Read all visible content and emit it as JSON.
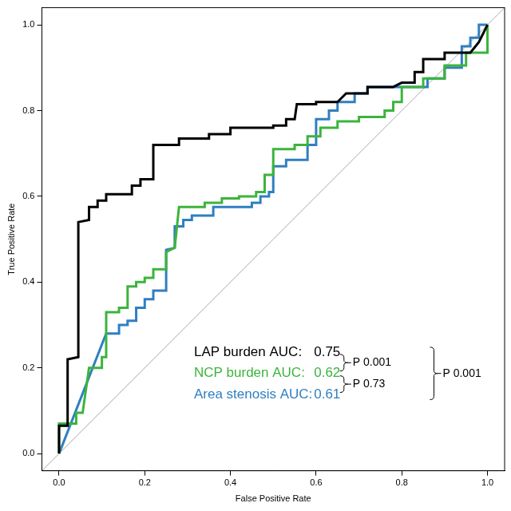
{
  "chart_data": {
    "type": "line",
    "x_label": "False Positive Rate",
    "y_label": "True Positive Rate",
    "xlim": [
      -0.04,
      1.04
    ],
    "ylim": [
      -0.04,
      1.04
    ],
    "xticks": [
      {
        "value": 0,
        "label": "0.0"
      },
      {
        "value": 0.2,
        "label": "0.2"
      },
      {
        "value": 0.4,
        "label": "0.4"
      },
      {
        "value": 0.6,
        "label": "0.6"
      },
      {
        "value": 0.8,
        "label": "0.8"
      },
      {
        "value": 1,
        "label": "1.0"
      }
    ],
    "yticks": [
      {
        "value": 0,
        "label": "0.0"
      },
      {
        "value": 0.2,
        "label": "0.2"
      },
      {
        "value": 0.4,
        "label": "0.4"
      },
      {
        "value": 0.6,
        "label": "0.6"
      },
      {
        "value": 0.8,
        "label": "0.8"
      },
      {
        "value": 1,
        "label": "1.0"
      }
    ],
    "grid": false,
    "diagonal": {
      "color": "#aaaaaa",
      "values": [
        [
          -0.04,
          -0.04
        ],
        [
          1.04,
          1.04
        ]
      ]
    },
    "series": [
      {
        "name": "LAP burden AUC:",
        "auc": 0.75,
        "color": "#000000",
        "values": [
          [
            0,
            0
          ],
          [
            0,
            0.065
          ],
          [
            0.02,
            0.065
          ],
          [
            0.02,
            0.22
          ],
          [
            0.045,
            0.225
          ],
          [
            0.045,
            0.54
          ],
          [
            0.07,
            0.545
          ],
          [
            0.07,
            0.575
          ],
          [
            0.09,
            0.575
          ],
          [
            0.09,
            0.59
          ],
          [
            0.11,
            0.59
          ],
          [
            0.11,
            0.605
          ],
          [
            0.17,
            0.605
          ],
          [
            0.17,
            0.625
          ],
          [
            0.19,
            0.625
          ],
          [
            0.19,
            0.64
          ],
          [
            0.22,
            0.64
          ],
          [
            0.22,
            0.72
          ],
          [
            0.28,
            0.72
          ],
          [
            0.28,
            0.735
          ],
          [
            0.35,
            0.735
          ],
          [
            0.35,
            0.745
          ],
          [
            0.4,
            0.745
          ],
          [
            0.4,
            0.76
          ],
          [
            0.5,
            0.76
          ],
          [
            0.5,
            0.765
          ],
          [
            0.53,
            0.765
          ],
          [
            0.53,
            0.78
          ],
          [
            0.55,
            0.78
          ],
          [
            0.555,
            0.815
          ],
          [
            0.6,
            0.815
          ],
          [
            0.6,
            0.82
          ],
          [
            0.65,
            0.82
          ],
          [
            0.67,
            0.84
          ],
          [
            0.72,
            0.84
          ],
          [
            0.72,
            0.855
          ],
          [
            0.78,
            0.855
          ],
          [
            0.8,
            0.865
          ],
          [
            0.83,
            0.865
          ],
          [
            0.83,
            0.89
          ],
          [
            0.85,
            0.89
          ],
          [
            0.85,
            0.92
          ],
          [
            0.9,
            0.92
          ],
          [
            0.9,
            0.935
          ],
          [
            0.96,
            0.935
          ],
          [
            0.98,
            0.96
          ],
          [
            1,
            1
          ]
        ]
      },
      {
        "name": "NCP burden AUC:",
        "auc": 0.62,
        "color": "#3cb43c",
        "values": [
          [
            0,
            0
          ],
          [
            0,
            0.07
          ],
          [
            0.04,
            0.07
          ],
          [
            0.04,
            0.095
          ],
          [
            0.055,
            0.095
          ],
          [
            0.07,
            0.2
          ],
          [
            0.1,
            0.2
          ],
          [
            0.1,
            0.225
          ],
          [
            0.11,
            0.225
          ],
          [
            0.11,
            0.33
          ],
          [
            0.14,
            0.33
          ],
          [
            0.14,
            0.34
          ],
          [
            0.16,
            0.34
          ],
          [
            0.16,
            0.39
          ],
          [
            0.18,
            0.39
          ],
          [
            0.18,
            0.4
          ],
          [
            0.2,
            0.4
          ],
          [
            0.2,
            0.41
          ],
          [
            0.22,
            0.41
          ],
          [
            0.22,
            0.43
          ],
          [
            0.25,
            0.43
          ],
          [
            0.25,
            0.47
          ],
          [
            0.27,
            0.48
          ],
          [
            0.28,
            0.575
          ],
          [
            0.34,
            0.575
          ],
          [
            0.34,
            0.585
          ],
          [
            0.38,
            0.585
          ],
          [
            0.38,
            0.595
          ],
          [
            0.42,
            0.595
          ],
          [
            0.42,
            0.6
          ],
          [
            0.46,
            0.6
          ],
          [
            0.46,
            0.61
          ],
          [
            0.48,
            0.61
          ],
          [
            0.48,
            0.65
          ],
          [
            0.5,
            0.65
          ],
          [
            0.5,
            0.71
          ],
          [
            0.55,
            0.71
          ],
          [
            0.55,
            0.72
          ],
          [
            0.58,
            0.72
          ],
          [
            0.58,
            0.74
          ],
          [
            0.61,
            0.74
          ],
          [
            0.61,
            0.76
          ],
          [
            0.65,
            0.76
          ],
          [
            0.65,
            0.775
          ],
          [
            0.7,
            0.775
          ],
          [
            0.7,
            0.785
          ],
          [
            0.76,
            0.785
          ],
          [
            0.76,
            0.8
          ],
          [
            0.78,
            0.8
          ],
          [
            0.78,
            0.82
          ],
          [
            0.8,
            0.82
          ],
          [
            0.8,
            0.855
          ],
          [
            0.85,
            0.855
          ],
          [
            0.85,
            0.875
          ],
          [
            0.9,
            0.875
          ],
          [
            0.9,
            0.905
          ],
          [
            0.95,
            0.905
          ],
          [
            0.95,
            0.935
          ],
          [
            1,
            0.935
          ],
          [
            1,
            1
          ]
        ]
      },
      {
        "name": "Area stenosis AUC:",
        "auc": 0.61,
        "color": "#2f7fc1",
        "values": [
          [
            0,
            0
          ],
          [
            0.11,
            0.28
          ],
          [
            0.14,
            0.28
          ],
          [
            0.14,
            0.3
          ],
          [
            0.16,
            0.3
          ],
          [
            0.16,
            0.31
          ],
          [
            0.18,
            0.31
          ],
          [
            0.18,
            0.34
          ],
          [
            0.2,
            0.34
          ],
          [
            0.2,
            0.36
          ],
          [
            0.22,
            0.36
          ],
          [
            0.22,
            0.38
          ],
          [
            0.25,
            0.38
          ],
          [
            0.25,
            0.475
          ],
          [
            0.27,
            0.48
          ],
          [
            0.27,
            0.53
          ],
          [
            0.29,
            0.53
          ],
          [
            0.29,
            0.545
          ],
          [
            0.31,
            0.545
          ],
          [
            0.31,
            0.555
          ],
          [
            0.36,
            0.555
          ],
          [
            0.36,
            0.575
          ],
          [
            0.45,
            0.575
          ],
          [
            0.45,
            0.585
          ],
          [
            0.47,
            0.585
          ],
          [
            0.47,
            0.6
          ],
          [
            0.49,
            0.6
          ],
          [
            0.49,
            0.61
          ],
          [
            0.5,
            0.61
          ],
          [
            0.5,
            0.67
          ],
          [
            0.53,
            0.67
          ],
          [
            0.53,
            0.685
          ],
          [
            0.58,
            0.685
          ],
          [
            0.58,
            0.72
          ],
          [
            0.6,
            0.72
          ],
          [
            0.6,
            0.78
          ],
          [
            0.63,
            0.78
          ],
          [
            0.63,
            0.8
          ],
          [
            0.65,
            0.8
          ],
          [
            0.65,
            0.82
          ],
          [
            0.69,
            0.82
          ],
          [
            0.69,
            0.84
          ],
          [
            0.72,
            0.84
          ],
          [
            0.72,
            0.855
          ],
          [
            0.86,
            0.855
          ],
          [
            0.86,
            0.875
          ],
          [
            0.9,
            0.875
          ],
          [
            0.9,
            0.9
          ],
          [
            0.94,
            0.9
          ],
          [
            0.94,
            0.95
          ],
          [
            0.96,
            0.95
          ],
          [
            0.96,
            0.97
          ],
          [
            0.98,
            0.97
          ],
          [
            0.98,
            1
          ],
          [
            1,
            1
          ]
        ]
      }
    ],
    "comparisons": [
      {
        "pair": [
          "LAP burden AUC:",
          "NCP burden AUC:"
        ],
        "label": "P 0.001"
      },
      {
        "pair": [
          "NCP burden AUC:",
          "Area stenosis AUC:"
        ],
        "label": "P 0.73"
      },
      {
        "pair": [
          "LAP burden AUC:",
          "Area stenosis AUC:"
        ],
        "label": "P 0.001"
      }
    ]
  }
}
